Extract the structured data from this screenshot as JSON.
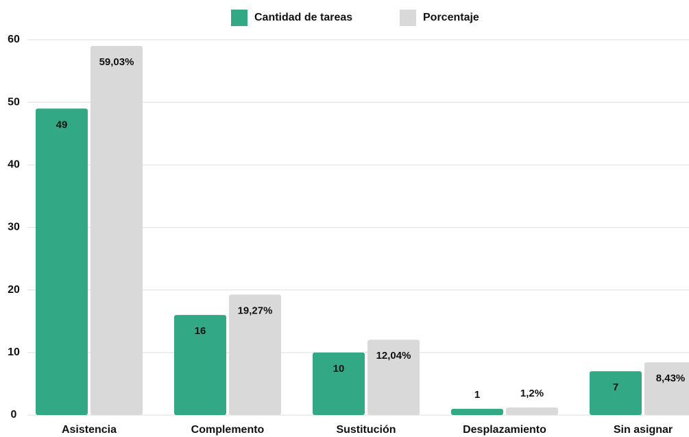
{
  "chart_data": {
    "type": "bar",
    "categories": [
      "Asistencia",
      "Complemento",
      "Sustitución",
      "Desplazamiento",
      "Sin asignar"
    ],
    "series": [
      {
        "name": "Cantidad de tareas",
        "color": "#33a884",
        "values": [
          49,
          16,
          10,
          1,
          7
        ]
      },
      {
        "name": "Porcentaje",
        "color": "#d9d9d9",
        "values": [
          59.03,
          19.27,
          12.04,
          1.2,
          8.43
        ],
        "value_labels": [
          "59,03%",
          "19,27%",
          "12,04%",
          "1,2%",
          "8,43%"
        ]
      }
    ],
    "ylim": [
      0,
      60
    ],
    "yticks": [
      0,
      10,
      20,
      30,
      40,
      50,
      60
    ],
    "grid": true,
    "legend": "top"
  }
}
